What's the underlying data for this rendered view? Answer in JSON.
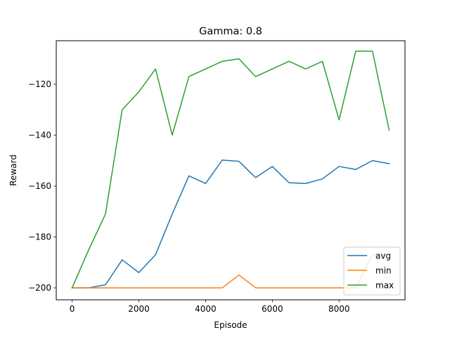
{
  "chart_data": {
    "type": "line",
    "title": "Gamma: 0.8",
    "xlabel": "Episode",
    "ylabel": "Reward",
    "xlim": [
      -475,
      9975
    ],
    "ylim": [
      -204.7,
      -102.9
    ],
    "xticks": [
      0,
      2000,
      4000,
      6000,
      8000
    ],
    "yticks": [
      -200,
      -180,
      -160,
      -140,
      -120
    ],
    "ytick_labels": [
      "−200",
      "−180",
      "−160",
      "−140",
      "−120"
    ],
    "xtick_labels": [
      "0",
      "2000",
      "4000",
      "6000",
      "8000"
    ],
    "grid": false,
    "legend_position": "lower-right",
    "x": [
      0,
      500,
      1000,
      1500,
      2000,
      2500,
      3000,
      3500,
      4000,
      4500,
      5000,
      5500,
      6000,
      6500,
      7000,
      7500,
      8000,
      8500,
      9000,
      9500
    ],
    "series": [
      {
        "name": "avg",
        "color": "#1f77b4",
        "values": [
          -200,
          -200,
          -198.8,
          -189,
          -194,
          -187,
          -171,
          -156,
          -159,
          -149.8,
          -150.3,
          -156.7,
          -152.3,
          -158.7,
          -159,
          -157.2,
          -152.3,
          -153.5,
          -150,
          -151.2
        ]
      },
      {
        "name": "min",
        "color": "#ff7f0e",
        "values": [
          -200,
          -200,
          -200,
          -200,
          -200,
          -200,
          -200,
          -200,
          -200,
          -200,
          -195,
          -200,
          -200,
          -200,
          -200,
          -200,
          -200,
          -200,
          -187,
          -187
        ]
      },
      {
        "name": "max",
        "color": "#2ca02c",
        "values": [
          -200,
          -185,
          -171,
          -130,
          -123,
          -114,
          -140,
          -117,
          -114,
          -111,
          -110,
          -117,
          -114,
          -111,
          -114,
          -111,
          -134,
          -107,
          -107,
          -138
        ]
      }
    ]
  }
}
